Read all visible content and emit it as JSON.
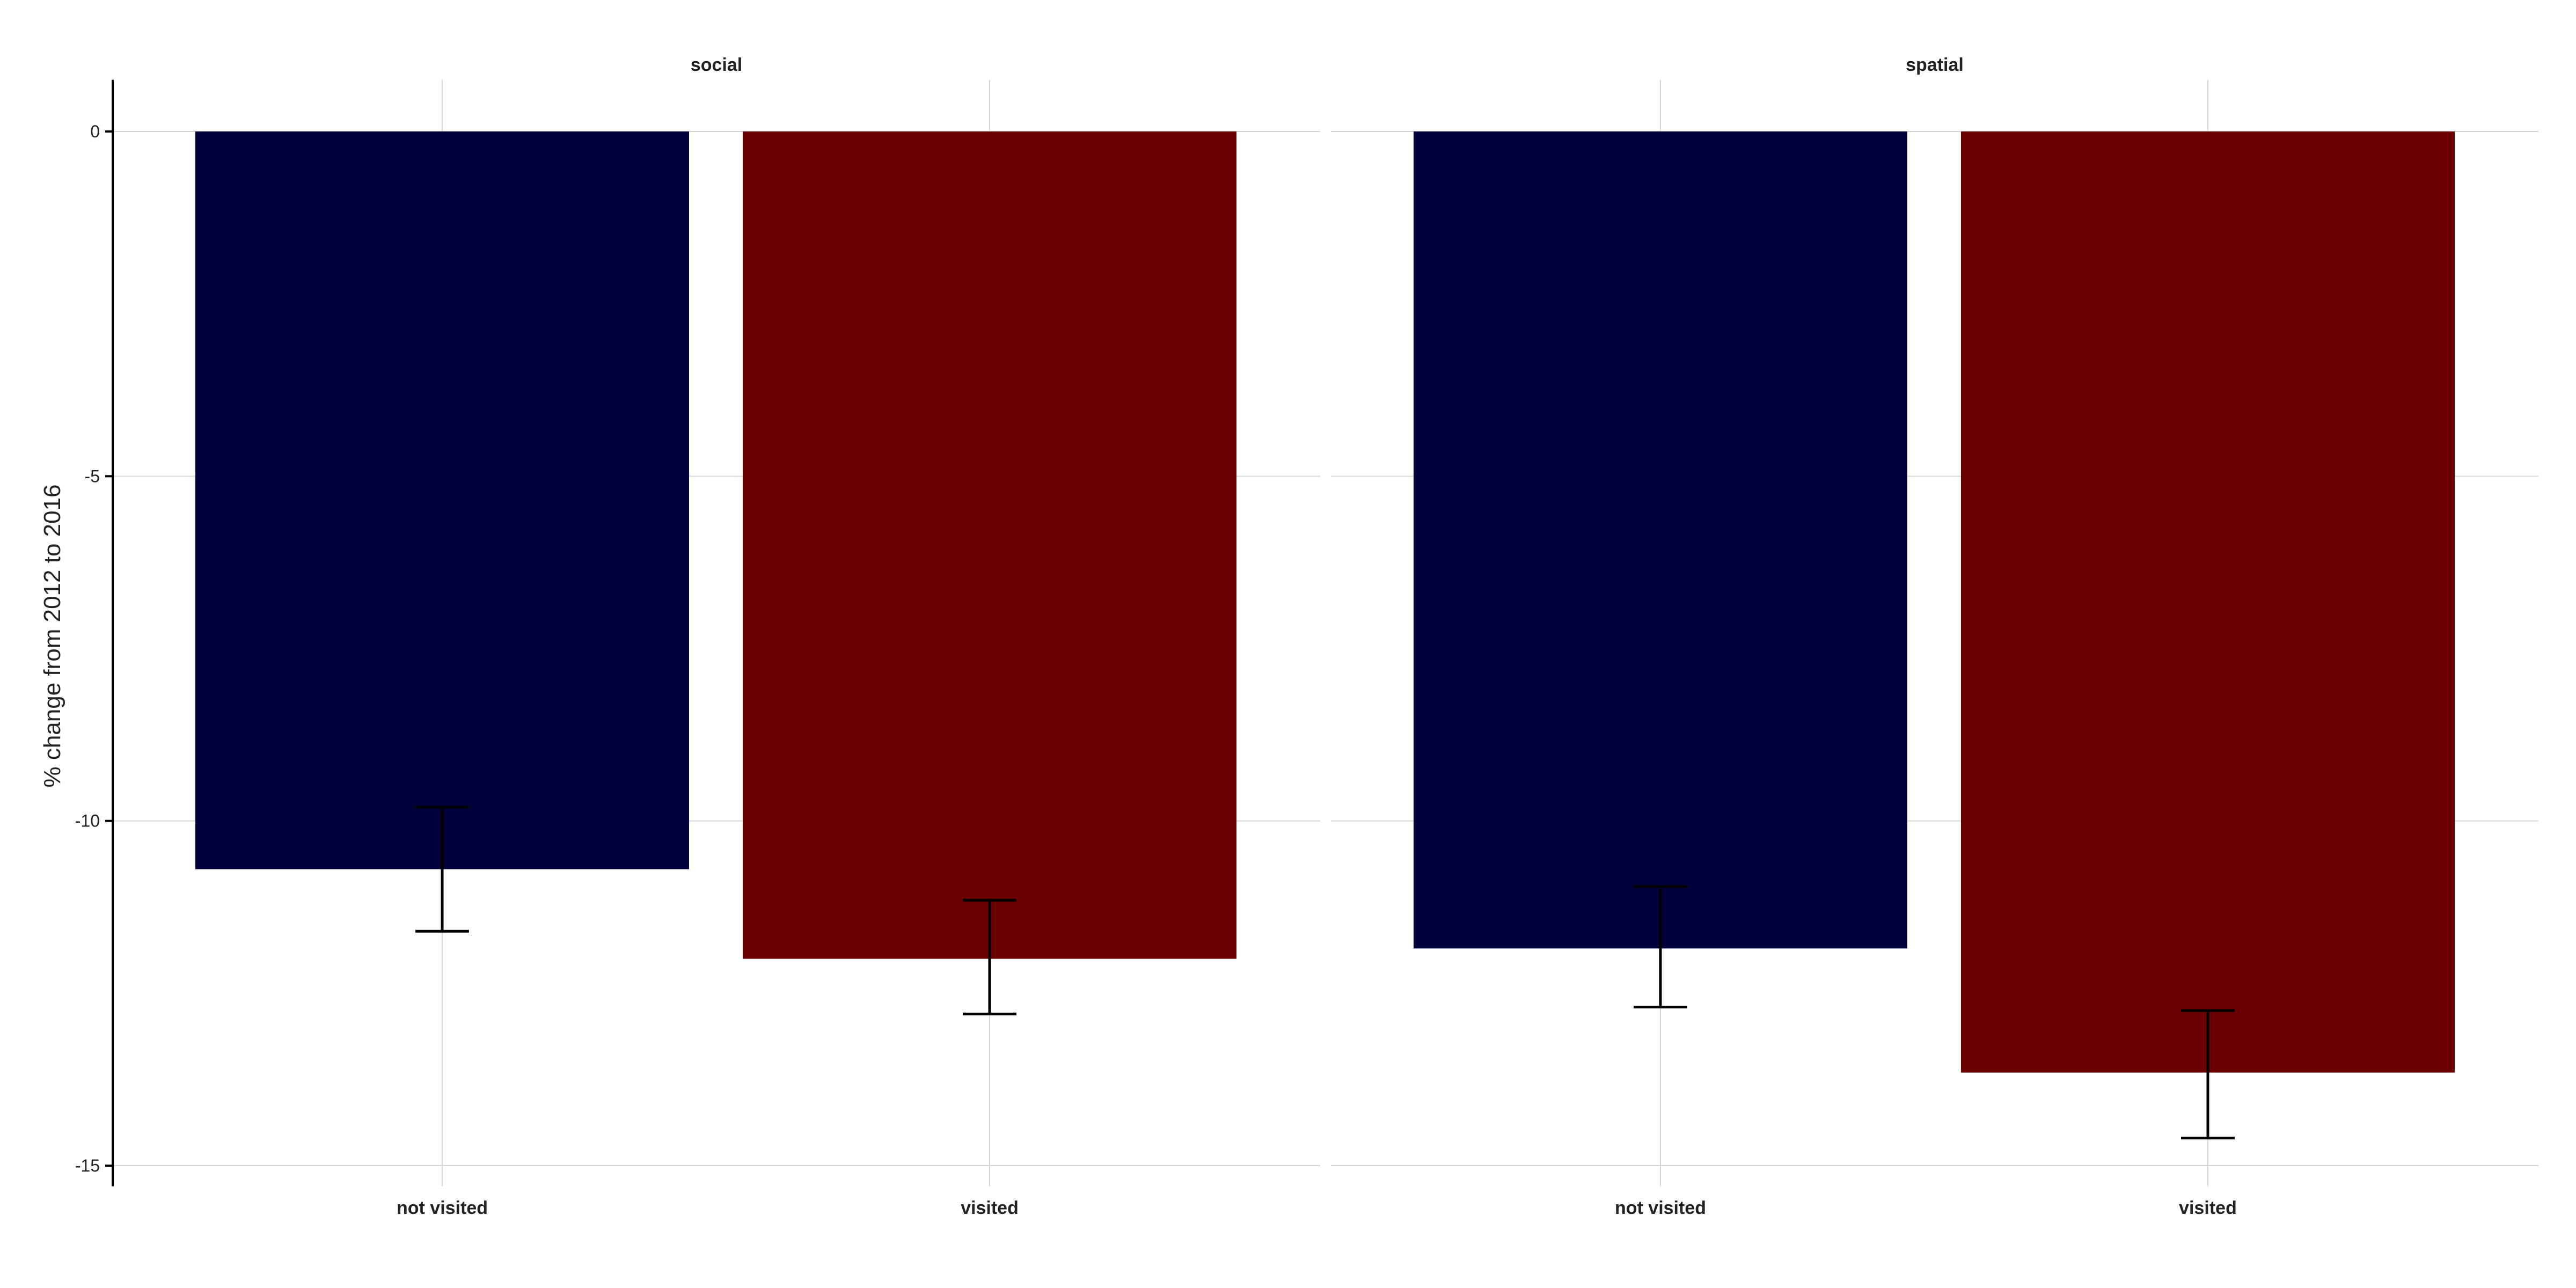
{
  "chart_data": {
    "type": "bar",
    "ylabel": "% change from 2012 to 2016",
    "xlabel": "",
    "ylim": [
      -15.3,
      0.75
    ],
    "yticks": [
      0,
      -5,
      -10,
      -15
    ],
    "categories": [
      "not visited",
      "visited"
    ],
    "grid": true,
    "legend": "none",
    "colors": {
      "not visited": "#00003b",
      "visited": "#6b0000"
    },
    "facets": [
      {
        "title": "social",
        "bars": [
          {
            "category": "not visited",
            "value": -10.7,
            "err_low": -11.6,
            "err_high": -9.8
          },
          {
            "category": "visited",
            "value": -12.0,
            "err_low": -12.8,
            "err_high": -11.15
          }
        ]
      },
      {
        "title": "spatial",
        "bars": [
          {
            "category": "not visited",
            "value": -11.85,
            "err_low": -12.7,
            "err_high": -10.95
          },
          {
            "category": "visited",
            "value": -13.65,
            "err_low": -14.6,
            "err_high": -12.75
          }
        ]
      }
    ]
  }
}
